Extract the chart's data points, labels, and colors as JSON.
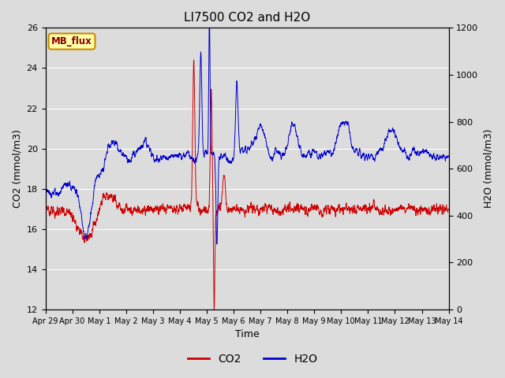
{
  "title": "LI7500 CO2 and H2O",
  "xlabel": "Time",
  "ylabel_left": "CO2 (mmol/m3)",
  "ylabel_right": "H2O (mmol/m3)",
  "ylim_left": [
    12,
    26
  ],
  "ylim_right": [
    0,
    1200
  ],
  "yticks_left": [
    12,
    14,
    16,
    18,
    20,
    22,
    24,
    26
  ],
  "yticks_right": [
    0,
    200,
    400,
    600,
    800,
    1000,
    1200
  ],
  "bg_color": "#dcdcdc",
  "co2_color": "#cc0000",
  "h2o_color": "#0000cc",
  "annotation_text": "MB_flux",
  "annotation_bg": "#ffffaa",
  "annotation_border": "#cc8800",
  "title_fontsize": 11,
  "label_fontsize": 9,
  "tick_fontsize": 8
}
